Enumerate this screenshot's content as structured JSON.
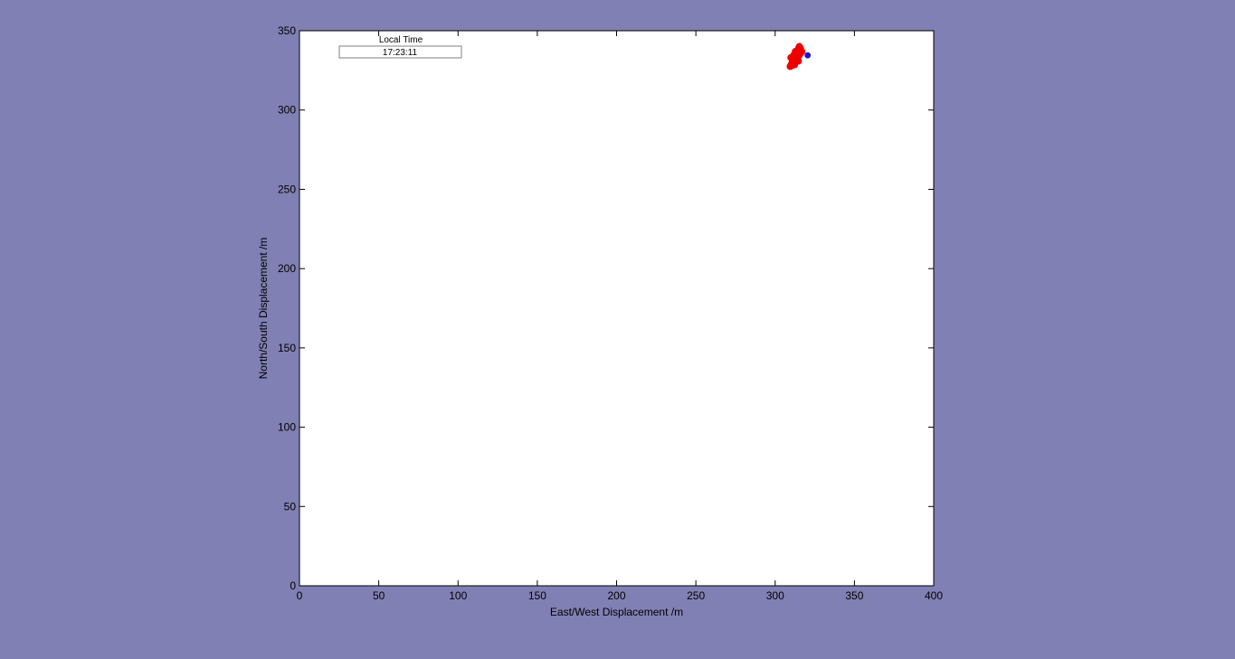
{
  "background_color": "#8080b4",
  "plot_background_color": "#ffffff",
  "time_panel": {
    "label": "Local Time",
    "value": "17:23:11"
  },
  "chart_data": {
    "type": "scatter",
    "title": "",
    "xlabel": "East/West Displacement /m",
    "ylabel": "North/South Displacement /m",
    "xlim": [
      0,
      400
    ],
    "ylim": [
      0,
      350
    ],
    "xticks": [
      0,
      50,
      100,
      150,
      200,
      250,
      300,
      350,
      400
    ],
    "yticks": [
      0,
      50,
      100,
      150,
      200,
      250,
      300,
      350
    ],
    "grid": false,
    "legend": "none",
    "series": [
      {
        "color": "#ee0000",
        "points": [
          [
            309.5,
            327.5
          ],
          [
            310.2,
            328.8
          ],
          [
            310.8,
            330.0
          ],
          [
            311.0,
            331.2
          ],
          [
            311.6,
            332.3
          ],
          [
            312.0,
            333.1
          ],
          [
            312.6,
            334.2
          ],
          [
            313.0,
            335.1
          ],
          [
            313.5,
            336.0
          ],
          [
            314.0,
            337.1
          ],
          [
            314.4,
            338.0
          ],
          [
            314.9,
            339.1
          ],
          [
            315.3,
            340.0
          ],
          [
            315.8,
            339.0
          ],
          [
            316.2,
            337.8
          ],
          [
            316.8,
            336.8
          ],
          [
            316.0,
            335.9
          ],
          [
            315.2,
            334.6
          ],
          [
            314.1,
            333.4
          ],
          [
            313.3,
            331.9
          ],
          [
            312.4,
            330.6
          ],
          [
            311.4,
            329.2
          ],
          [
            310.6,
            328.1
          ],
          [
            312.8,
            336.9
          ],
          [
            311.8,
            334.7
          ],
          [
            313.7,
            332.9
          ],
          [
            315.0,
            336.4
          ],
          [
            314.6,
            330.9
          ],
          [
            310.0,
            333.0
          ],
          [
            312.2,
            328.6
          ]
        ]
      },
      {
        "color": "#1a1acc",
        "points": [
          [
            320.5,
            334.5
          ]
        ]
      }
    ]
  }
}
